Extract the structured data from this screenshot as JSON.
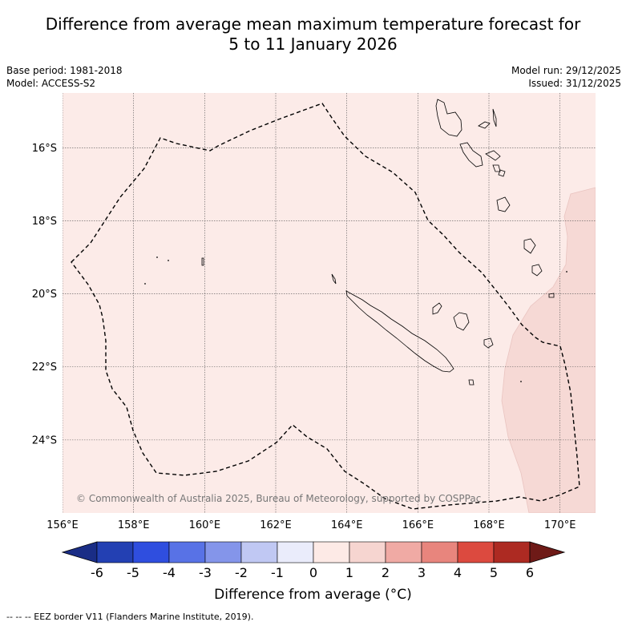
{
  "title_line1": "Difference from average mean maximum temperature forecast for",
  "title_line2": "5 to 11 January 2026",
  "meta": {
    "base_period": "Base period: 1981-2018",
    "model": "Model: ACCESS-S2",
    "model_run": "Model run: 29/12/2025",
    "issued": "Issued: 31/12/2025"
  },
  "map": {
    "lon_range": [
      156,
      171
    ],
    "lat_range": [
      -26.0,
      -14.5
    ],
    "lat_ticks": [
      {
        "value": -16,
        "label": "16°S"
      },
      {
        "value": -18,
        "label": "18°S"
      },
      {
        "value": -20,
        "label": "20°S"
      },
      {
        "value": -22,
        "label": "22°S"
      },
      {
        "value": -24,
        "label": "24°S"
      }
    ],
    "lon_ticks": [
      {
        "value": 156,
        "label": "156°E"
      },
      {
        "value": 158,
        "label": "158°E"
      },
      {
        "value": 160,
        "label": "160°E"
      },
      {
        "value": 162,
        "label": "162°E"
      },
      {
        "value": 164,
        "label": "164°E"
      },
      {
        "value": 166,
        "label": "166°E"
      },
      {
        "value": 168,
        "label": "168°E"
      },
      {
        "value": 170,
        "label": "170°E"
      }
    ],
    "background_anomaly_color": "#fcebe8",
    "warm_patch_color": "#f6d9d5",
    "copyright": "© Commonwealth of Australia 2025, Bureau of Meteorology, supported by COSPPac"
  },
  "colorbar": {
    "ticks": [
      "-6",
      "-5",
      "-4",
      "-3",
      "-2",
      "-1",
      "0",
      "1",
      "2",
      "3",
      "4",
      "5",
      "6"
    ],
    "colors": [
      "#1a2d86",
      "#2340b3",
      "#2f4edf",
      "#5872e6",
      "#8495ea",
      "#c0c8f3",
      "#eaecfb",
      "#fdeae6",
      "#f6d5d0",
      "#f0aaa4",
      "#e8857d",
      "#dc4a3f",
      "#ad2a22",
      "#6e1a17"
    ],
    "title": "Difference from average (°C)"
  },
  "footer": "-- -- -- EEZ border V11 (Flanders Marine Institute, 2019)."
}
